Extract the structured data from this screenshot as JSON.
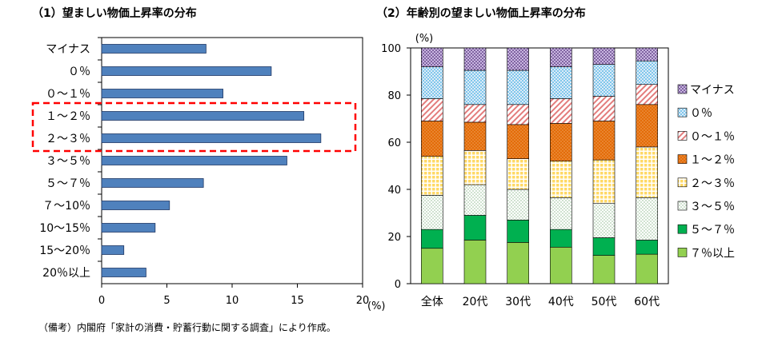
{
  "left_title": "（1）望ましい物価上昇率の分布",
  "right_title": "（2）年齢別の望ましい物価上昇率の分布",
  "source_note": "（備考）内閣府「家計の消費・貯蓄行動に関する調査」により作成。",
  "colors": {
    "bar_blue": "#4F81BD",
    "highlight_red": "#FF0000",
    "stack": [
      "#92D050",
      "#00B050",
      "#FFFFFF",
      "#FFE699",
      "#F07A1A",
      "#F4BABA",
      "#BDD7EE",
      "#8064A2"
    ]
  },
  "chart_data": [
    {
      "type": "bar",
      "orientation": "horizontal",
      "title": "（1）望ましい物価上昇率の分布",
      "categories": [
        "マイナス",
        "０％",
        "０～１％",
        "１～２％",
        "２～３％",
        "３～５％",
        "５～７％",
        "７～10％",
        "10～15％",
        "15～20％",
        "20％以上"
      ],
      "values": [
        8.0,
        13.0,
        9.3,
        15.5,
        16.8,
        14.2,
        7.8,
        5.2,
        4.1,
        1.7,
        3.4
      ],
      "xunit": "(%)",
      "xlim": [
        0,
        20
      ],
      "xticks": [
        "0",
        "5",
        "10",
        "15",
        "20"
      ],
      "highlighted_categories": [
        "１～２％",
        "２～３％"
      ],
      "grid": false
    },
    {
      "type": "bar",
      "stacked": true,
      "title": "（2）年齢別の望ましい物価上昇率の分布",
      "categories": [
        "全体",
        "20代",
        "30代",
        "40代",
        "50代",
        "60代"
      ],
      "yunit": "(%)",
      "ylim": [
        0,
        100
      ],
      "yticks": [
        "0",
        "20",
        "40",
        "60",
        "80",
        "100"
      ],
      "legend_position": "right",
      "series": [
        {
          "name": "７％以上",
          "values": [
            15,
            18.5,
            17.5,
            15.5,
            12,
            12.5
          ]
        },
        {
          "name": "５～７％",
          "values": [
            8,
            10.5,
            9.5,
            7.5,
            7.5,
            6
          ]
        },
        {
          "name": "３～５％",
          "values": [
            14.5,
            13,
            13,
            13.5,
            14.5,
            18
          ]
        },
        {
          "name": "２～３％",
          "values": [
            16.5,
            14.5,
            13,
            15.5,
            18.5,
            21.5
          ]
        },
        {
          "name": "１～２％",
          "values": [
            15,
            12,
            14.5,
            16,
            16.5,
            18
          ]
        },
        {
          "name": "０～１％",
          "values": [
            9.5,
            7.5,
            8.5,
            10.5,
            10.5,
            8.5
          ]
        },
        {
          "name": "０％",
          "values": [
            13.5,
            14.5,
            14.5,
            13.5,
            13.5,
            10
          ]
        },
        {
          "name": "マイナス",
          "values": [
            8,
            9.5,
            9.5,
            8,
            7,
            5.5
          ]
        }
      ],
      "grid": false
    }
  ]
}
